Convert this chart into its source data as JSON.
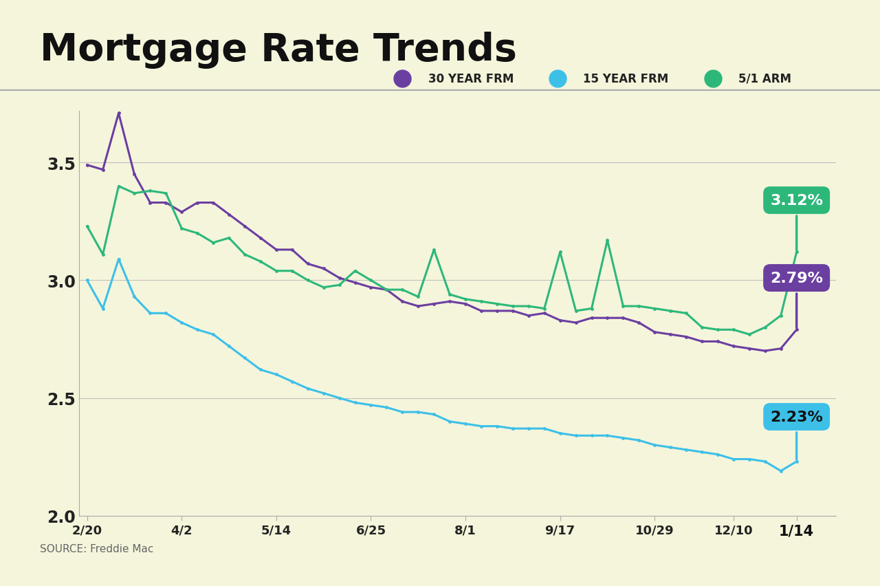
{
  "title": "Mortgage Rate Trends",
  "background_color": "#F5F5DC",
  "source_text": "SOURCE: Freddie Mac",
  "ylim": [
    2.0,
    3.72
  ],
  "yticks": [
    2.0,
    2.5,
    3.0,
    3.5
  ],
  "x_labels": [
    "2/20",
    "4/2",
    "5/14",
    "6/25",
    "8/1",
    "9/17",
    "10/29",
    "12/10",
    "1/14"
  ],
  "x_tick_positions": [
    0,
    6,
    12,
    18,
    24,
    30,
    36,
    41,
    45
  ],
  "xlim": [
    -0.5,
    47.5
  ],
  "legend_entries": [
    {
      "label": "30 YEAR FRM",
      "color": "#6B3FA0"
    },
    {
      "label": "15 YEAR FRM",
      "color": "#3DC0E8"
    },
    {
      "label": "5/1 ARM",
      "color": "#2DB87A"
    }
  ],
  "series_30yr": [
    3.49,
    3.47,
    3.71,
    3.45,
    3.33,
    3.33,
    3.29,
    3.33,
    3.33,
    3.28,
    3.23,
    3.18,
    3.13,
    3.13,
    3.07,
    3.05,
    3.01,
    2.99,
    2.97,
    2.96,
    2.91,
    2.89,
    2.9,
    2.91,
    2.9,
    2.87,
    2.87,
    2.87,
    2.85,
    2.86,
    2.83,
    2.82,
    2.84,
    2.84,
    2.84,
    2.82,
    2.78,
    2.77,
    2.76,
    2.74,
    2.74,
    2.72,
    2.71,
    2.7,
    2.71,
    2.79
  ],
  "series_15yr": [
    3.0,
    2.88,
    3.09,
    2.93,
    2.86,
    2.86,
    2.82,
    2.79,
    2.77,
    2.72,
    2.67,
    2.62,
    2.6,
    2.57,
    2.54,
    2.52,
    2.5,
    2.48,
    2.47,
    2.46,
    2.44,
    2.44,
    2.43,
    2.4,
    2.39,
    2.38,
    2.38,
    2.37,
    2.37,
    2.37,
    2.35,
    2.34,
    2.34,
    2.34,
    2.33,
    2.32,
    2.3,
    2.29,
    2.28,
    2.27,
    2.26,
    2.24,
    2.24,
    2.23,
    2.19,
    2.23
  ],
  "series_arm": [
    3.23,
    3.11,
    3.4,
    3.37,
    3.38,
    3.37,
    3.22,
    3.2,
    3.16,
    3.18,
    3.11,
    3.08,
    3.04,
    3.04,
    3.0,
    2.97,
    2.98,
    3.04,
    3.0,
    2.96,
    2.96,
    2.93,
    3.13,
    2.94,
    2.92,
    2.91,
    2.9,
    2.89,
    2.89,
    2.88,
    3.12,
    2.87,
    2.88,
    3.17,
    2.89,
    2.89,
    2.88,
    2.87,
    2.86,
    2.8,
    2.79,
    2.79,
    2.77,
    2.8,
    2.85,
    3.12
  ]
}
